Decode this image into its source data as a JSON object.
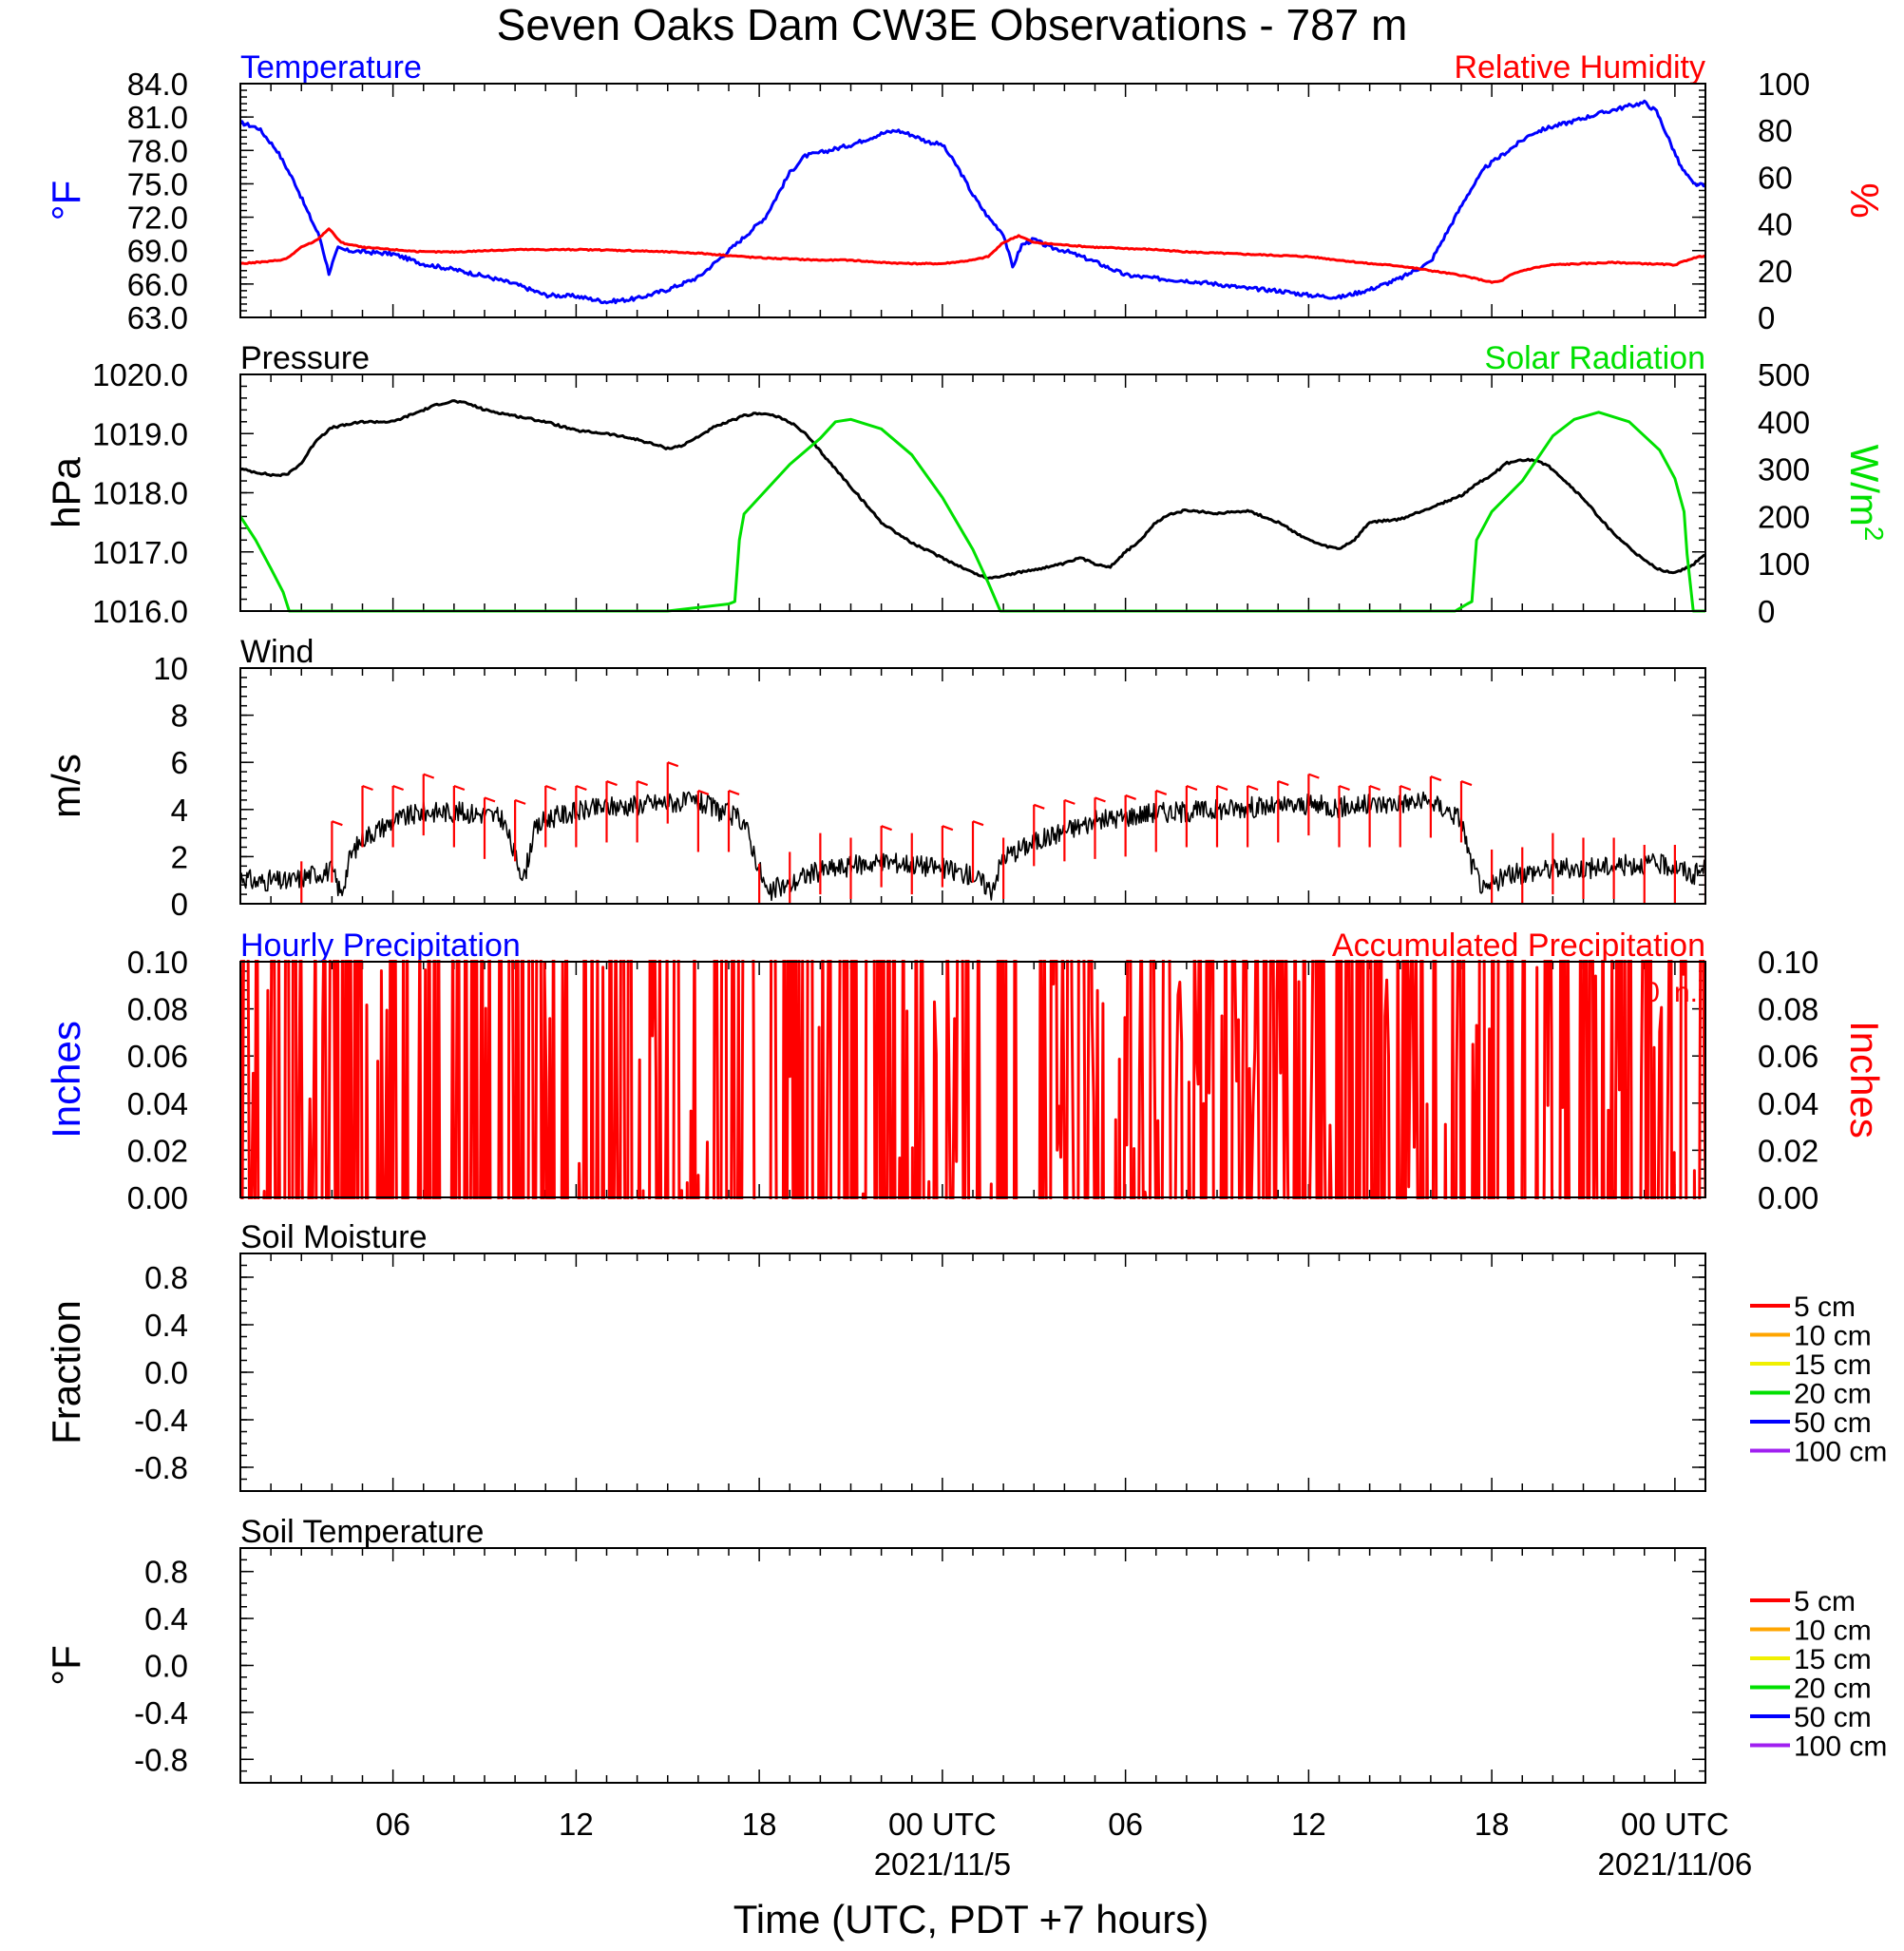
{
  "figure": {
    "title": "Seven Oaks Dam CW3E Observations - 787 m",
    "xlabel": "Time (UTC, PDT +7 hours)",
    "x_ticks": [
      "06",
      "12",
      "18",
      "00 UTC",
      "06",
      "12",
      "18",
      "00 UTC"
    ],
    "x_tick_hours": [
      6,
      12,
      18,
      24,
      30,
      36,
      42,
      48
    ],
    "date_labels": [
      {
        "text": "2021/11/5",
        "hour": 24
      },
      {
        "text": "2021/11/06",
        "hour": 48
      }
    ],
    "x_range_hours": [
      1,
      49
    ]
  },
  "colors": {
    "temperature": "#0000ff",
    "humidity": "#ff0000",
    "pressure": "#000000",
    "solar": "#00e000",
    "wind": "#000000",
    "barb": "#ff0000",
    "soil_5": "#ff0000",
    "soil_10": "#ffa500",
    "soil_15": "#f0f000",
    "soil_20": "#00e000",
    "soil_50": "#0000ff",
    "soil_100": "#a020f0"
  },
  "chart_data": [
    {
      "type": "line",
      "title_left": "Temperature",
      "title_right": "Relative Humidity",
      "ylabel_left": "°F",
      "ylabel_right": "%",
      "ylim_left": [
        63,
        84
      ],
      "ylim_right": [
        0,
        100
      ],
      "yticks_left": [
        "84.0",
        "81.0",
        "78.0",
        "75.0",
        "72.0",
        "69.0",
        "66.0",
        "63.0"
      ],
      "yticks_right": [
        "100",
        "80",
        "60",
        "40",
        "20",
        "0"
      ],
      "series": [
        {
          "name": "Temperature",
          "axis": "left",
          "color_key": "temperature",
          "x": [
            1.0,
            1.6,
            2.2,
            2.8,
            3.2,
            3.6,
            3.9,
            4.2,
            4.5,
            5.0,
            6.0,
            7.0,
            8.0,
            9.0,
            10.0,
            11.0,
            12.0,
            13.0,
            14.0,
            15.0,
            16.0,
            16.8,
            17.5,
            18.2,
            18.6,
            19.0,
            19.5,
            20.0,
            21.0,
            22.0,
            22.5,
            23.0,
            23.5,
            24.0,
            24.5,
            25.0,
            25.5,
            26.0,
            26.3,
            26.6,
            27.0,
            27.5,
            28.0,
            29.0,
            30.0,
            31.0,
            32.0,
            33.0,
            34.0,
            35.0,
            36.0,
            37.0,
            38.0,
            39.0,
            40.0,
            40.6,
            41.2,
            41.8,
            42.3,
            42.8,
            43.3,
            43.8,
            44.5,
            45.5,
            46.5,
            47.0,
            47.4,
            47.8,
            48.2,
            48.6,
            49.0
          ],
          "y": [
            80.5,
            80.0,
            78.0,
            75.0,
            72.5,
            70.2,
            67.0,
            69.2,
            69.0,
            68.9,
            68.7,
            67.8,
            67.3,
            66.7,
            66.0,
            65.0,
            64.9,
            64.4,
            64.7,
            65.5,
            66.6,
            68.5,
            70.2,
            72.0,
            74.0,
            76.0,
            77.5,
            77.8,
            78.5,
            79.5,
            79.8,
            79.4,
            78.8,
            78.5,
            76.5,
            74.0,
            72.0,
            70.5,
            67.5,
            69.5,
            70.0,
            69.3,
            69.0,
            68.0,
            66.8,
            66.5,
            66.3,
            66.0,
            65.6,
            65.4,
            65.0,
            64.8,
            65.5,
            66.5,
            68.0,
            71.0,
            74.0,
            76.5,
            77.5,
            78.5,
            79.5,
            80.0,
            80.5,
            81.3,
            82.0,
            82.3,
            81.5,
            79.0,
            76.5,
            75.0,
            74.8
          ]
        },
        {
          "name": "Relative Humidity",
          "axis": "right",
          "color_key": "humidity",
          "x": [
            1.0,
            2.0,
            2.5,
            3.0,
            3.5,
            3.9,
            4.3,
            5.0,
            6.0,
            7.0,
            8.0,
            9.0,
            10.0,
            11.0,
            12.0,
            13.0,
            14.0,
            15.0,
            16.0,
            17.0,
            18.0,
            19.0,
            20.0,
            21.0,
            22.0,
            23.0,
            24.0,
            25.0,
            25.5,
            26.0,
            26.5,
            27.0,
            27.5,
            28.0,
            29.0,
            30.0,
            31.0,
            32.0,
            33.0,
            34.0,
            35.0,
            36.0,
            37.0,
            38.0,
            39.0,
            40.0,
            41.0,
            42.0,
            42.3,
            42.6,
            43.0,
            43.5,
            44.0,
            45.0,
            46.0,
            47.0,
            48.0,
            48.5,
            49.0
          ],
          "y": [
            23,
            24,
            25,
            30,
            33,
            38,
            32,
            30,
            29,
            28,
            28,
            28.5,
            29,
            29,
            29,
            28.8,
            28.5,
            28,
            27.5,
            26.5,
            25.5,
            25,
            24.5,
            24.5,
            23.5,
            23,
            23,
            24.5,
            26,
            32,
            35,
            32,
            31.5,
            31,
            30,
            29.5,
            29,
            28,
            27.5,
            27,
            26.5,
            26,
            24.5,
            23,
            22,
            20,
            18,
            15,
            15.5,
            18,
            20,
            21.5,
            22.5,
            23,
            23.5,
            23,
            22.5,
            25,
            26.5
          ]
        }
      ]
    },
    {
      "type": "line",
      "title_left": "Pressure",
      "title_right": "Solar Radiation",
      "ylabel_left": "hPa",
      "ylabel_right": "W/m",
      "ylabel_right_sup": "2",
      "ylim_left": [
        1016,
        1020
      ],
      "ylim_right": [
        0,
        500
      ],
      "yticks_left": [
        "1020.0",
        "1019.0",
        "1018.0",
        "1017.0",
        "1016.0"
      ],
      "yticks_right": [
        "500",
        "400",
        "300",
        "200",
        "100",
        "0"
      ],
      "series": [
        {
          "name": "Pressure",
          "axis": "left",
          "color_key": "pressure",
          "x": [
            1.0,
            1.5,
            2.0,
            2.5,
            3.0,
            3.5,
            4.0,
            5.0,
            6.0,
            7.0,
            7.5,
            8.0,
            8.5,
            9.0,
            10.0,
            11.0,
            12.0,
            13.0,
            14.0,
            15.0,
            15.5,
            16.0,
            16.5,
            17.0,
            17.5,
            18.0,
            18.5,
            19.0,
            19.5,
            20.0,
            21.0,
            22.0,
            23.0,
            24.0,
            25.0,
            25.5,
            26.0,
            27.0,
            28.0,
            28.5,
            29.0,
            29.5,
            30.0,
            30.5,
            31.0,
            31.5,
            32.0,
            33.0,
            34.0,
            35.0,
            36.0,
            36.5,
            37.0,
            37.5,
            38.0,
            39.0,
            39.5,
            40.0,
            41.0,
            41.5,
            42.0,
            42.5,
            43.0,
            43.5,
            44.0,
            45.0,
            46.0,
            47.0,
            47.5,
            48.0,
            48.5,
            49.0
          ],
          "y": [
            1018.4,
            1018.35,
            1018.3,
            1018.3,
            1018.5,
            1018.9,
            1019.1,
            1019.2,
            1019.2,
            1019.4,
            1019.5,
            1019.55,
            1019.5,
            1019.4,
            1019.3,
            1019.2,
            1019.05,
            1019.0,
            1018.9,
            1018.75,
            1018.8,
            1018.95,
            1019.1,
            1019.2,
            1019.3,
            1019.35,
            1019.3,
            1019.2,
            1019.0,
            1018.7,
            1018.1,
            1017.5,
            1017.15,
            1016.9,
            1016.65,
            1016.55,
            1016.6,
            1016.7,
            1016.8,
            1016.9,
            1016.8,
            1016.75,
            1017.0,
            1017.2,
            1017.5,
            1017.65,
            1017.7,
            1017.65,
            1017.7,
            1017.5,
            1017.2,
            1017.1,
            1017.05,
            1017.2,
            1017.5,
            1017.55,
            1017.65,
            1017.75,
            1017.95,
            1018.15,
            1018.3,
            1018.5,
            1018.55,
            1018.55,
            1018.4,
            1017.9,
            1017.3,
            1016.85,
            1016.7,
            1016.65,
            1016.75,
            1016.95
          ]
        },
        {
          "name": "Solar Radiation",
          "axis": "right",
          "color_key": "solar",
          "x": [
            1.0,
            1.5,
            2.0,
            2.4,
            2.6,
            3.0,
            5.0,
            10.0,
            15.0,
            17.0,
            17.2,
            17.35,
            17.5,
            18.0,
            19.0,
            20.0,
            20.5,
            21.0,
            22.0,
            23.0,
            24.0,
            25.0,
            25.5,
            25.9,
            26.3,
            30.0,
            35.0,
            39.0,
            40.8,
            41.2,
            41.35,
            41.5,
            42.0,
            43.0,
            44.0,
            44.7,
            45.5,
            46.5,
            47.5,
            48.0,
            48.3,
            48.4,
            48.6,
            49.0
          ],
          "y": [
            200,
            150,
            90,
            40,
            0,
            0,
            0,
            0,
            0,
            15,
            20,
            150,
            205,
            240,
            310,
            365,
            400,
            405,
            385,
            330,
            240,
            130,
            60,
            0,
            0,
            0,
            0,
            0,
            0,
            15,
            20,
            150,
            210,
            275,
            370,
            405,
            420,
            400,
            340,
            280,
            210,
            120,
            0,
            0
          ]
        }
      ]
    },
    {
      "type": "line",
      "title_left": "Wind",
      "ylabel_left": "m/s",
      "ylim_left": [
        0,
        10
      ],
      "yticks_left": [
        "10",
        "8",
        "6",
        "4",
        "2",
        "0"
      ],
      "series": [
        {
          "name": "Wind",
          "axis": "left",
          "color_key": "wind",
          "x": [
            1.0,
            1.5,
            2.0,
            2.5,
            3.0,
            3.5,
            4.0,
            4.3,
            4.6,
            5.0,
            6.0,
            7.0,
            8.0,
            9.0,
            9.6,
            10.0,
            10.3,
            10.6,
            11.0,
            12.0,
            13.0,
            14.0,
            15.0,
            16.0,
            17.0,
            17.5,
            18.0,
            18.3,
            18.6,
            19.0,
            19.5,
            20.0,
            21.0,
            22.0,
            23.0,
            24.0,
            25.0,
            25.6,
            26.0,
            26.5,
            27.0,
            28.0,
            29.0,
            30.0,
            31.0,
            32.0,
            33.0,
            34.0,
            35.0,
            36.0,
            37.0,
            38.0,
            39.0,
            40.0,
            40.5,
            41.0,
            41.3,
            41.8,
            42.0,
            42.5,
            43.0,
            44.0,
            45.0,
            46.0,
            47.0,
            48.0,
            48.6,
            49.0
          ],
          "y": [
            1.2,
            0.9,
            1.0,
            0.9,
            1.1,
            1.3,
            1.4,
            0.4,
            2.0,
            2.8,
            3.5,
            3.9,
            3.9,
            3.8,
            3.6,
            2.0,
            1.1,
            3.0,
            3.6,
            3.9,
            4.1,
            4.2,
            4.3,
            4.3,
            3.8,
            3.5,
            1.5,
            0.3,
            0.7,
            0.8,
            1.2,
            1.4,
            1.6,
            1.8,
            1.7,
            1.5,
            1.2,
            0.6,
            2.0,
            2.3,
            2.6,
            3.1,
            3.5,
            3.7,
            3.9,
            3.9,
            4.0,
            4.1,
            4.1,
            4.2,
            4.1,
            4.2,
            4.3,
            4.3,
            4.0,
            3.6,
            1.8,
            0.4,
            0.8,
            1.2,
            1.3,
            1.5,
            1.5,
            1.6,
            1.7,
            1.6,
            1.2,
            1.5
          ]
        }
      ],
      "barbs": {
        "x": [
          3.0,
          4.0,
          5.0,
          6.0,
          7.0,
          8.0,
          9.0,
          10.0,
          11.0,
          12.0,
          13.0,
          14.0,
          15.0,
          16.0,
          17.0,
          18.0,
          19.0,
          20.0,
          21.0,
          22.0,
          23.0,
          24.0,
          25.0,
          26.0,
          27.0,
          28.0,
          29.0,
          30.0,
          31.0,
          32.0,
          33.0,
          34.0,
          35.0,
          36.0,
          37.0,
          38.0,
          39.0,
          40.0,
          41.0,
          42.0,
          43.0,
          44.0,
          45.0,
          46.0,
          47.0,
          48.0,
          49.0
        ],
        "speed": [
          1.8,
          3.5,
          5.0,
          5.0,
          5.5,
          5.0,
          4.5,
          4.4,
          5.0,
          5.0,
          5.2,
          5.2,
          6.0,
          4.8,
          4.8,
          1.7,
          2.2,
          3.0,
          2.8,
          3.3,
          3.0,
          3.3,
          3.5,
          2.8,
          4.2,
          4.4,
          4.5,
          4.6,
          4.8,
          5.0,
          5.0,
          5.0,
          5.2,
          5.5,
          5.0,
          5.0,
          5.0,
          5.4,
          5.2,
          2.3,
          2.4,
          3.0,
          2.8,
          2.8,
          2.5,
          2.5,
          2.6
        ]
      }
    },
    {
      "type": "line",
      "title_left": "Hourly Precipitation",
      "title_right": "Accumulated Precipitation",
      "annotation": "0 in.",
      "ylabel_left": "Inches",
      "ylabel_right": "Inches",
      "ylim_left": [
        0,
        0.1
      ],
      "ylim_right": [
        0,
        0.1
      ],
      "yticks_left": [
        "0.10",
        "0.08",
        "0.06",
        "0.04",
        "0.02",
        "0.00"
      ],
      "yticks_right": [
        "0.10",
        "0.08",
        "0.06",
        "0.04",
        "0.02",
        "0.00"
      ],
      "series": [
        {
          "name": "Accumulated Precipitation",
          "axis": "right",
          "color_key": "humidity",
          "x": [
            1,
            49
          ],
          "y": [
            0,
            0
          ]
        }
      ]
    },
    {
      "type": "line",
      "title_left": "Soil Moisture",
      "ylabel_left": "Fraction",
      "ylim_left": [
        -1,
        1
      ],
      "yticks_left": [
        "0.8",
        "0.4",
        "0.0",
        "-0.4",
        "-0.8"
      ],
      "legend": [
        "5 cm",
        "10 cm",
        "15 cm",
        "20 cm",
        "50 cm",
        "100 cm"
      ],
      "legend_color_keys": [
        "soil_5",
        "soil_10",
        "soil_15",
        "soil_20",
        "soil_50",
        "soil_100"
      ],
      "series": []
    },
    {
      "type": "line",
      "title_left": "Soil Temperature",
      "ylabel_left": "°F",
      "ylim_left": [
        -1,
        1
      ],
      "yticks_left": [
        "0.8",
        "0.4",
        "0.0",
        "-0.4",
        "-0.8"
      ],
      "legend": [
        "5 cm",
        "10 cm",
        "15 cm",
        "20 cm",
        "50 cm",
        "100 cm"
      ],
      "legend_color_keys": [
        "soil_5",
        "soil_10",
        "soil_15",
        "soil_20",
        "soil_50",
        "soil_100"
      ],
      "series": []
    }
  ]
}
